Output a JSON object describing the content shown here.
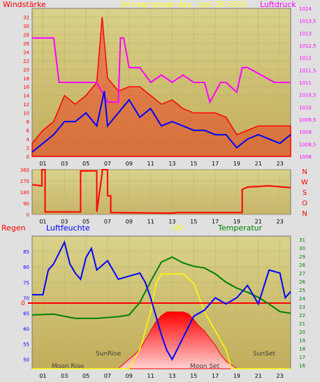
{
  "colors": {
    "background": "#e0e0e0",
    "plot_fill": "#d8cf8e",
    "grid": "#bcb377",
    "wind": "#ff0000",
    "pressure": "#ff00ff",
    "avg": "#0000ff",
    "direction": "#ff0000",
    "humidity": "#0000ff",
    "temperature": "#008000",
    "uv": "#ffff00",
    "sun": "#ff0000",
    "label_red": "#ff0000",
    "label_blue": "#0000ff",
    "label_yellow": "#ffff00",
    "label_green": "#008000",
    "label_magenta": "#ff00ff"
  },
  "chart_data": [
    {
      "type": "line",
      "title": "24 hour graph day : Juni 29 2015",
      "ylabel": "Windstärke",
      "y2label": "Luftdruck",
      "ylim": [
        0,
        34
      ],
      "y2lim": [
        1008,
        1014
      ],
      "y_ticks": [
        "0",
        "2",
        "4",
        "6",
        "8",
        "10",
        "12",
        "14",
        "16",
        "18",
        "20",
        "22",
        "24",
        "26",
        "28",
        "30",
        "32"
      ],
      "y2_ticks": [
        "1008",
        "1008,5",
        "1009",
        "1009,5",
        "1010",
        "1010,5",
        "1011",
        "1011,5",
        "1012",
        "1012,5",
        "1013",
        "1013,5",
        "1014"
      ],
      "x_ticks": [
        "01",
        "03",
        "05",
        "07",
        "09",
        "11",
        "13",
        "15",
        "17",
        "19",
        "21",
        "23"
      ],
      "grid": true,
      "series": [
        {
          "name": "Windstärke",
          "hours": [
            0,
            1,
            2,
            3,
            4,
            5,
            6,
            6.5,
            7,
            8,
            9,
            10,
            11,
            12,
            13,
            14,
            15,
            16,
            17,
            18,
            19,
            20,
            21,
            22,
            23,
            24
          ],
          "values": [
            3,
            6,
            8,
            14,
            12,
            14,
            17,
            32,
            18,
            15,
            16,
            16,
            14,
            12,
            13,
            11,
            10,
            10,
            10,
            9,
            5,
            6,
            7,
            7,
            7,
            7
          ]
        },
        {
          "name": "Luftdruck",
          "hours": [
            0,
            2,
            2.5,
            6,
            7,
            8,
            8.2,
            8.5,
            9,
            10,
            11,
            12,
            13,
            14,
            15,
            16,
            16.5,
            17.5,
            18,
            19,
            19.5,
            20,
            22.5,
            24
          ],
          "values": [
            1012.8,
            1012.8,
            1011,
            1011,
            1010.2,
            1010.2,
            1012.8,
            1012.8,
            1011.6,
            1011.6,
            1011,
            1011.3,
            1011,
            1011.3,
            1011,
            1011,
            1010.2,
            1011,
            1011,
            1010.6,
            1011.6,
            1011.6,
            1011,
            1011
          ]
        },
        {
          "name": "Mittelwert",
          "hours": [
            0,
            1,
            2,
            3,
            4,
            5,
            6,
            6.7,
            7,
            8,
            9,
            10,
            11,
            12,
            13,
            14,
            15,
            16,
            17,
            18,
            19,
            20,
            21,
            22,
            23,
            24
          ],
          "values": [
            1,
            3,
            5,
            8,
            8,
            10,
            7,
            15,
            7,
            10,
            13,
            9,
            11,
            7,
            8,
            7,
            6,
            6,
            5,
            5,
            2,
            4,
            5,
            4,
            3,
            5
          ]
        }
      ]
    },
    {
      "type": "line",
      "title": "",
      "ylabel": "",
      "ylim": [
        0,
        360
      ],
      "y_ticks": [
        "0",
        "90",
        "180",
        "270",
        "360"
      ],
      "compass_labels": [
        "N",
        "W",
        "S",
        "O",
        "N"
      ],
      "x_ticks": [
        "01",
        "03",
        "05",
        "07",
        "09",
        "11",
        "13",
        "15",
        "17",
        "19",
        "21",
        "23"
      ],
      "grid": true,
      "series": [
        {
          "name": "Windrichtung",
          "hours": [
            0,
            0.9,
            0.9,
            1.2,
            1.2,
            4.5,
            4.5,
            6,
            6,
            6.5,
            6.5,
            7,
            7,
            7.3,
            7.3,
            13,
            13.5,
            19.5,
            19.5,
            20,
            21,
            22,
            24
          ],
          "values": [
            240,
            230,
            360,
            360,
            20,
            20,
            350,
            350,
            20,
            330,
            360,
            360,
            150,
            150,
            15,
            10,
            15,
            15,
            200,
            220,
            225,
            230,
            215
          ]
        }
      ]
    },
    {
      "type": "line",
      "title": "",
      "labels": {
        "regen": "Regen",
        "humidity": "Luftfeuchte",
        "uv": "UV",
        "temperature": "Temperatur"
      },
      "ylabel": "Luftfeuchte",
      "ylim": [
        47,
        90
      ],
      "y_ticks": [
        "50",
        "55",
        "60",
        "65",
        "70",
        "75",
        "80",
        "85"
      ],
      "y2label": "Temperatur",
      "y2lim": [
        15.6,
        31.4
      ],
      "y2_ticks": [
        "16",
        "17",
        "18",
        "19",
        "20",
        "21",
        "22",
        "23",
        "24",
        "25",
        "26",
        "27",
        "28",
        "29",
        "30",
        "31"
      ],
      "rain_zero_label": "0",
      "x_ticks": [
        "01",
        "03",
        "05",
        "07",
        "09",
        "11",
        "13",
        "15",
        "17",
        "19",
        "21",
        "23"
      ],
      "annotations": {
        "sunrise": "SunRise",
        "sunset": "SunSet",
        "moonrise": "Moon Rise",
        "moonset": "Moon Set"
      },
      "grid": true,
      "series": [
        {
          "name": "Luftfeuchte",
          "hours": [
            0,
            1,
            1.5,
            2,
            3,
            3.5,
            4,
            4.5,
            5,
            5.5,
            6,
            7,
            8,
            9,
            10,
            10.5,
            11,
            11.5,
            12,
            12.5,
            13,
            14,
            15,
            16,
            17,
            18,
            19,
            20,
            21,
            22,
            23,
            23.5,
            24
          ],
          "values": [
            71,
            71,
            79,
            81,
            88,
            81,
            78,
            76,
            83,
            86,
            79,
            82,
            76,
            77,
            78,
            75,
            70,
            64,
            58,
            53,
            50,
            57,
            64,
            66,
            70,
            68,
            70,
            74,
            68,
            79,
            78,
            70,
            72
          ]
        },
        {
          "name": "Temperatur",
          "hours": [
            0,
            2,
            4,
            6,
            8,
            9,
            10,
            11,
            12,
            13,
            14,
            15,
            16,
            17,
            18,
            19,
            20,
            21,
            22,
            23,
            24
          ],
          "values": [
            22.0,
            22.1,
            21.6,
            21.6,
            21.8,
            22.0,
            23.5,
            26.0,
            28.3,
            28.9,
            28.2,
            27.8,
            27.6,
            26.9,
            25.9,
            25.2,
            24.7,
            24.1,
            23.3,
            22.4,
            22.2
          ]
        },
        {
          "name": "UV",
          "hours": [
            0,
            9,
            9.5,
            10,
            10.5,
            11,
            11.5,
            12,
            13,
            14,
            15,
            16,
            17,
            18,
            18.5,
            24
          ],
          "values": [
            0,
            0,
            1,
            2,
            4,
            6,
            9,
            10,
            10,
            10,
            9,
            6,
            4,
            2,
            0,
            0
          ]
        },
        {
          "name": "Sonne",
          "hours": [
            0,
            8,
            8.5,
            9,
            9.5,
            10,
            10.5,
            11,
            11.5,
            12,
            12.5,
            13,
            13.5,
            14,
            14.5,
            15,
            15.5,
            16,
            16.5,
            17,
            17.5,
            18,
            19,
            24
          ],
          "values": [
            0,
            0,
            0.5,
            1,
            1.5,
            2,
            3,
            4,
            5,
            5.6,
            6,
            6,
            6,
            6,
            5.8,
            5.2,
            4.5,
            4,
            3.2,
            2.5,
            1.5,
            0.8,
            0,
            0
          ]
        }
      ]
    }
  ]
}
